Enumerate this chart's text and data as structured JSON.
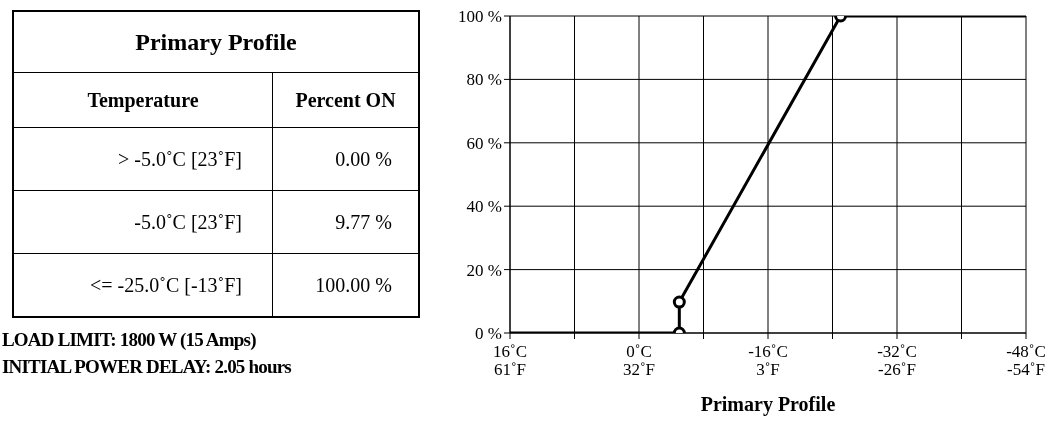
{
  "chart_data": [
    {
      "type": "other",
      "title": "Primary Profile",
      "annotations": [
        "Temperature",
        "Percent ON",
        "> -5.0˚C [23˚F]",
        "0.00 %",
        "-5.0˚C [23˚F]",
        "9.77 %",
        "<= -25.0˚C [-13˚F]",
        "100.00 %",
        "LOAD LIMIT:  1800 W (15 Amps)",
        "INITIAL POWER DELAY: 2.05 hours"
      ]
    },
    {
      "type": "line",
      "xlabel": "Primary Profile",
      "xlim": [
        16,
        -48
      ],
      "xticks": [
        {
          "value": 16,
          "label": "16˚C"
        },
        {
          "value": 8,
          "label": null
        },
        {
          "value": 0,
          "label": "0˚C"
        },
        {
          "value": -8,
          "label": null
        },
        {
          "value": -16,
          "label": "-16˚C"
        },
        {
          "value": -24,
          "label": null
        },
        {
          "value": -32,
          "label": "-32˚C"
        },
        {
          "value": -40,
          "label": null
        },
        {
          "value": -48,
          "label": "-48˚C"
        }
      ],
      "x2lim": [
        60.8,
        -54.4
      ],
      "x2ticks": [
        {
          "value": 60.8,
          "label": "61˚F"
        },
        {
          "value": 32,
          "label": "32˚F"
        },
        {
          "value": 3.2,
          "label": "3˚F"
        },
        {
          "value": -25.6,
          "label": "-26˚F"
        },
        {
          "value": -54.4,
          "label": "-54˚F"
        }
      ],
      "ylim": [
        0,
        100
      ],
      "yticks": [
        {
          "value": 0,
          "label": "0 %"
        },
        {
          "value": 20,
          "label": "20 %"
        },
        {
          "value": 40,
          "label": "40 %"
        },
        {
          "value": 60,
          "label": "60 %"
        },
        {
          "value": 80,
          "label": "80 %"
        },
        {
          "value": 100,
          "label": "100 %"
        }
      ],
      "grid": true,
      "series": [
        {
          "type": "line",
          "color": "#000000",
          "marker": "none",
          "x": [
            16,
            -5,
            -5,
            -25,
            -48
          ],
          "values": [
            0,
            0,
            9.77,
            100,
            100
          ]
        },
        {
          "type": "scatter",
          "color": "#000000",
          "marker": "circle",
          "x": [
            -5,
            -5,
            -25
          ],
          "values": [
            0,
            9.77,
            100
          ]
        }
      ]
    }
  ]
}
